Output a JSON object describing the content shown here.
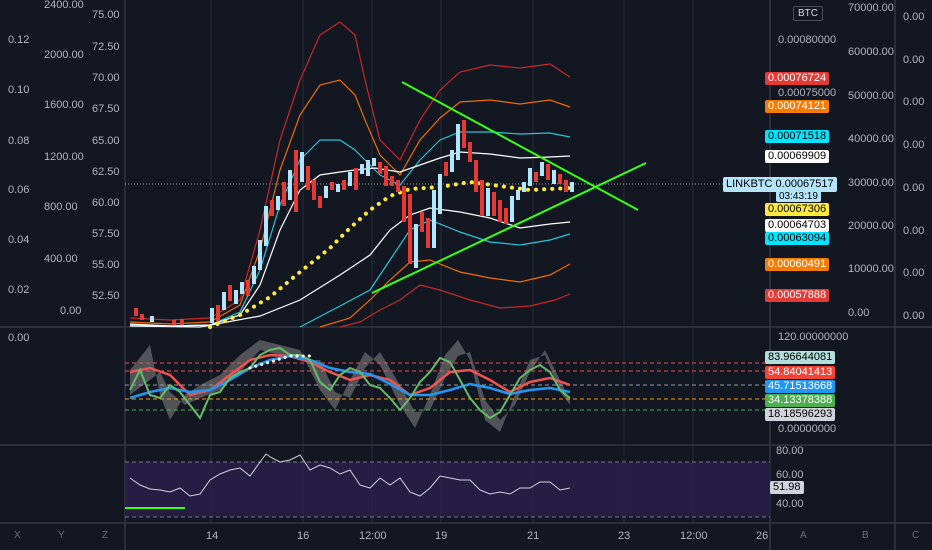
{
  "symbol_tag": {
    "label": "LINKBTC",
    "price": "0.00067517",
    "countdown": "03:43:19"
  },
  "btc_badge": "BTC",
  "far_left_axis": [
    "0.12",
    "0.10",
    "0.08",
    "0.06",
    "0.04",
    "0.02",
    "0.00"
  ],
  "second_axis": [
    "2400.00",
    "2000.00",
    "1600.00",
    "1200.00",
    "800.00",
    "400.00",
    "0.00"
  ],
  "third_axis": [
    "75.00",
    "72.50",
    "70.00",
    "67.50",
    "65.00",
    "62.50",
    "60.00",
    "57.50",
    "55.00",
    "52.50"
  ],
  "main_price_axis": [
    "0.00080000",
    "0.00075000"
  ],
  "price_tags": [
    {
      "value": "0.00076724",
      "bg": "#e53935",
      "fg": "#ffffff"
    },
    {
      "value": "0.00074121",
      "bg": "#f57c00",
      "fg": "#ffffff"
    },
    {
      "value": "0.00071518",
      "bg": "#00e5ff",
      "fg": "#000000"
    },
    {
      "value": "0.00069909",
      "bg": "#ffffff",
      "fg": "#000000"
    },
    {
      "value": "0.00067306",
      "bg": "#ffeb3b",
      "fg": "#000000"
    },
    {
      "value": "0.00064703",
      "bg": "#ffffff",
      "fg": "#000000"
    },
    {
      "value": "0.00063094",
      "bg": "#00e5ff",
      "fg": "#000000"
    },
    {
      "value": "0.00060491",
      "bg": "#f57c00",
      "fg": "#ffffff"
    },
    {
      "value": "0.00057888",
      "bg": "#e53935",
      "fg": "#ffffff"
    }
  ],
  "volume_axis": [
    "70000.00",
    "60000.00",
    "50000.00",
    "40000.00",
    "30000.00",
    "20000.00",
    "10000.00",
    "0.00"
  ],
  "far_right_axis": [
    "0.00",
    "0.00",
    "0.00",
    "0.00",
    "0.00",
    "0.00",
    "0.00",
    "0.00"
  ],
  "osc_axis": {
    "top": "120.00000000",
    "bottom": "0.00000000"
  },
  "osc_tags": [
    {
      "value": "83.96644081",
      "bg": "#b2dfdb",
      "fg": "#000000"
    },
    {
      "value": "54.84041413",
      "bg": "#f44336",
      "fg": "#ffffff"
    },
    {
      "value": "45.71513668",
      "bg": "#2196f3",
      "fg": "#ffffff"
    },
    {
      "value": "34.13378388",
      "bg": "#4caf50",
      "fg": "#ffffff"
    },
    {
      "value": "18.18596293",
      "bg": "#d1d4dc",
      "fg": "#000000"
    }
  ],
  "rsi_axis": {
    "upper": "80.00",
    "mid_upper": "60.00",
    "current": "51.98",
    "lower": "40.00"
  },
  "time_axis": [
    "14",
    "16",
    "12:00",
    "19",
    "21",
    "23",
    "12:00",
    "26"
  ],
  "corner_icons": {
    "left": [
      "X",
      "Y",
      "Z"
    ],
    "right": [
      "A",
      "B",
      "C"
    ]
  },
  "colors": {
    "background": "#131722",
    "up_candle": "#b3e5fc",
    "down_candle": "#e53935",
    "trendline": "#39ff14",
    "ma_dots": "#ffeb3b"
  }
}
